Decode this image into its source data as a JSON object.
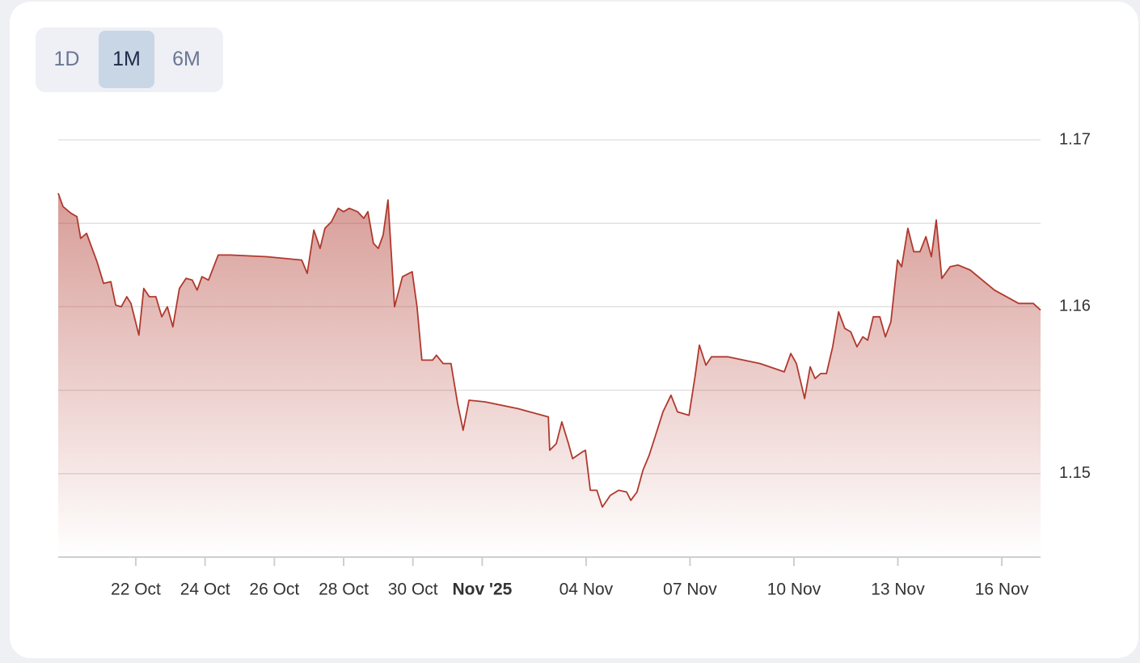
{
  "range_selector": {
    "options": [
      "1D",
      "1M",
      "6M"
    ],
    "active": 1
  },
  "chart_data": {
    "type": "area",
    "series": [
      {
        "color": "#b0392e",
        "x": [
          19.76,
          19.9,
          20.13,
          20.3,
          20.41,
          20.58,
          20.72,
          20.88,
          21.07,
          21.28,
          21.42,
          21.58,
          21.74,
          21.86,
          22.09,
          22.23,
          22.39,
          22.58,
          22.75,
          22.91,
          23.07,
          23.26,
          23.45,
          23.63,
          23.77,
          23.91,
          24.1,
          24.38,
          24.73,
          25.78,
          26.79,
          26.95,
          27.14,
          27.32,
          27.46,
          27.65,
          27.84,
          28.0,
          28.16,
          28.4,
          28.58,
          28.7,
          28.86,
          29.0,
          29.14,
          29.28,
          29.47,
          29.7,
          29.98,
          30.12,
          30.26,
          30.57,
          30.68,
          30.87,
          31.1,
          31.29,
          31.45,
          31.62,
          32.08,
          33.02,
          33.91,
          33.95,
          34.14,
          34.3,
          34.49,
          34.61,
          34.89,
          34.98,
          35.12,
          35.31,
          35.47,
          35.7,
          35.94,
          36.17,
          36.29,
          36.47,
          36.64,
          36.82,
          36.99,
          37.22,
          37.45,
          37.64,
          37.97,
          38.15,
          38.27,
          38.46,
          38.62,
          39.09,
          40.02,
          40.72,
          40.91,
          41.07,
          41.31,
          41.47,
          41.61,
          41.77,
          41.94,
          42.12,
          42.29,
          42.47,
          42.64,
          42.82,
          42.99,
          43.13,
          43.29,
          43.48,
          43.64,
          43.8,
          43.99,
          44.11,
          44.29,
          44.46,
          44.64,
          44.81,
          44.97,
          45.11,
          45.27,
          45.51,
          45.74,
          46.09,
          46.79,
          47.49,
          47.91,
          48.12
        ],
        "values": [
          1.1668,
          1.166,
          1.1656,
          1.1654,
          1.1641,
          1.1644,
          1.1636,
          1.1627,
          1.1614,
          1.1615,
          1.1601,
          1.16,
          1.1606,
          1.1602,
          1.1583,
          1.1611,
          1.1606,
          1.1606,
          1.1594,
          1.16,
          1.1588,
          1.1611,
          1.1617,
          1.1616,
          1.161,
          1.1618,
          1.1616,
          1.1631,
          1.1631,
          1.163,
          1.1628,
          1.162,
          1.1646,
          1.1635,
          1.1647,
          1.1651,
          1.1659,
          1.1657,
          1.1659,
          1.1657,
          1.1653,
          1.1657,
          1.1638,
          1.1635,
          1.1643,
          1.1664,
          1.16,
          1.1618,
          1.1621,
          1.16,
          1.1568,
          1.1568,
          1.1571,
          1.1566,
          1.1566,
          1.1542,
          1.1526,
          1.1544,
          1.1543,
          1.1539,
          1.1534,
          1.1514,
          1.1518,
          1.1531,
          1.1518,
          1.1509,
          1.1513,
          1.1514,
          1.149,
          1.149,
          1.148,
          1.1487,
          1.149,
          1.1489,
          1.1484,
          1.1489,
          1.1502,
          1.1511,
          1.1522,
          1.1537,
          1.1547,
          1.1537,
          1.1535,
          1.1559,
          1.1577,
          1.1565,
          1.157,
          1.157,
          1.1566,
          1.1561,
          1.1572,
          1.1566,
          1.1545,
          1.1564,
          1.1557,
          1.156,
          1.156,
          1.1576,
          1.1597,
          1.1587,
          1.1585,
          1.1576,
          1.1582,
          1.158,
          1.1594,
          1.1594,
          1.1582,
          1.1591,
          1.1628,
          1.1624,
          1.1647,
          1.1633,
          1.1633,
          1.1642,
          1.163,
          1.1652,
          1.1617,
          1.1624,
          1.1625,
          1.1622,
          1.161,
          1.1602,
          1.1602,
          1.1598
        ]
      }
    ],
    "xlim": [
      19.76,
      48.12
    ],
    "xticks": [
      {
        "value": 22,
        "label": "22 Oct"
      },
      {
        "value": 24,
        "label": "24 Oct"
      },
      {
        "value": 26,
        "label": "26 Oct"
      },
      {
        "value": 28,
        "label": "28 Oct"
      },
      {
        "value": 30,
        "label": "30 Oct"
      },
      {
        "value": 32,
        "label": "Nov '25",
        "bold": true
      },
      {
        "value": 35,
        "label": "04 Nov"
      },
      {
        "value": 38,
        "label": "07 Nov"
      },
      {
        "value": 41,
        "label": "10 Nov"
      },
      {
        "value": 44,
        "label": "13 Nov"
      },
      {
        "value": 47,
        "label": "16 Nov"
      }
    ],
    "ylim": [
      1.145,
      1.17
    ],
    "yticks": [
      1.15,
      1.16,
      1.17
    ],
    "minor_gridlines": [
      1.155,
      1.165
    ],
    "grid": true,
    "y_axis_side": "right"
  }
}
